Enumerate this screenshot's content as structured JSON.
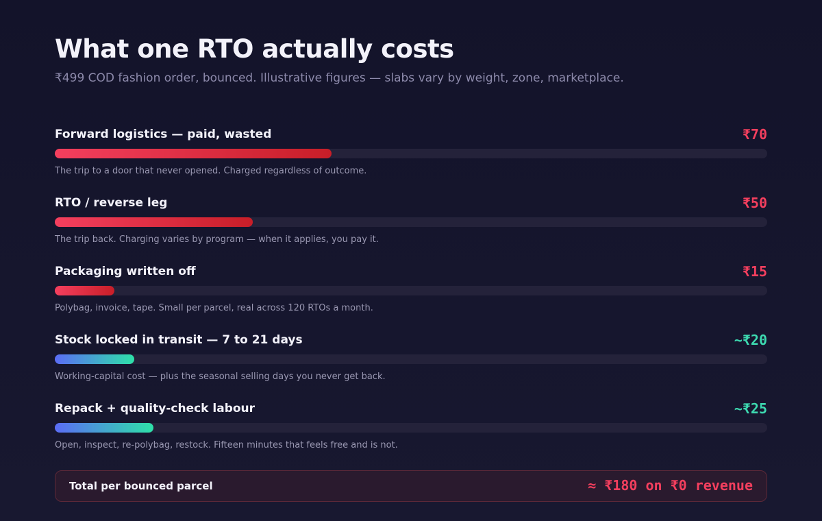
{
  "chart_data": {
    "type": "bar",
    "title": "What one RTO actually costs",
    "subtitle": "₹499 COD fashion order, bounced. Illustrative figures — slabs vary by weight, zone, marketplace.",
    "categories": [
      "Forward logistics — paid, wasted",
      "RTO / reverse leg",
      "Packaging written off",
      "Stock locked in transit — 7 to 21 days",
      "Repack + quality-check labour"
    ],
    "values": [
      70,
      50,
      15,
      20,
      25
    ],
    "value_labels": [
      "₹70",
      "₹50",
      "₹15",
      "~₹20",
      "~₹25"
    ],
    "notes": [
      "The trip to a door that never opened. Charged regardless of outcome.",
      "The trip back. Charging varies by program — when it applies, you pay it.",
      "Polybag, invoice, tape. Small per parcel, real across 120 RTOs a month.",
      "Working-capital cost — plus the seasonal selling days you never get back.",
      "Open, inspect, re-polybag, restock. Fifteen minutes that feels free and is not."
    ],
    "colors": [
      [
        "#f43f5e",
        "#c81e28"
      ],
      [
        "#f43f5e",
        "#c81e28"
      ],
      [
        "#f43f5e",
        "#c81e28"
      ],
      [
        "#5b6cf5",
        "#2ee0a8"
      ],
      [
        "#5b6cf5",
        "#2ee0a8"
      ]
    ],
    "label_colors": [
      "#f43f5e",
      "#f43f5e",
      "#f43f5e",
      "#3dd9b0",
      "#3dd9b0"
    ],
    "xlim": [
      0,
      180
    ],
    "total": {
      "label": "Total per bounced parcel",
      "value": 180,
      "value_label": "≈ ₹180 on ₹0 revenue"
    }
  }
}
